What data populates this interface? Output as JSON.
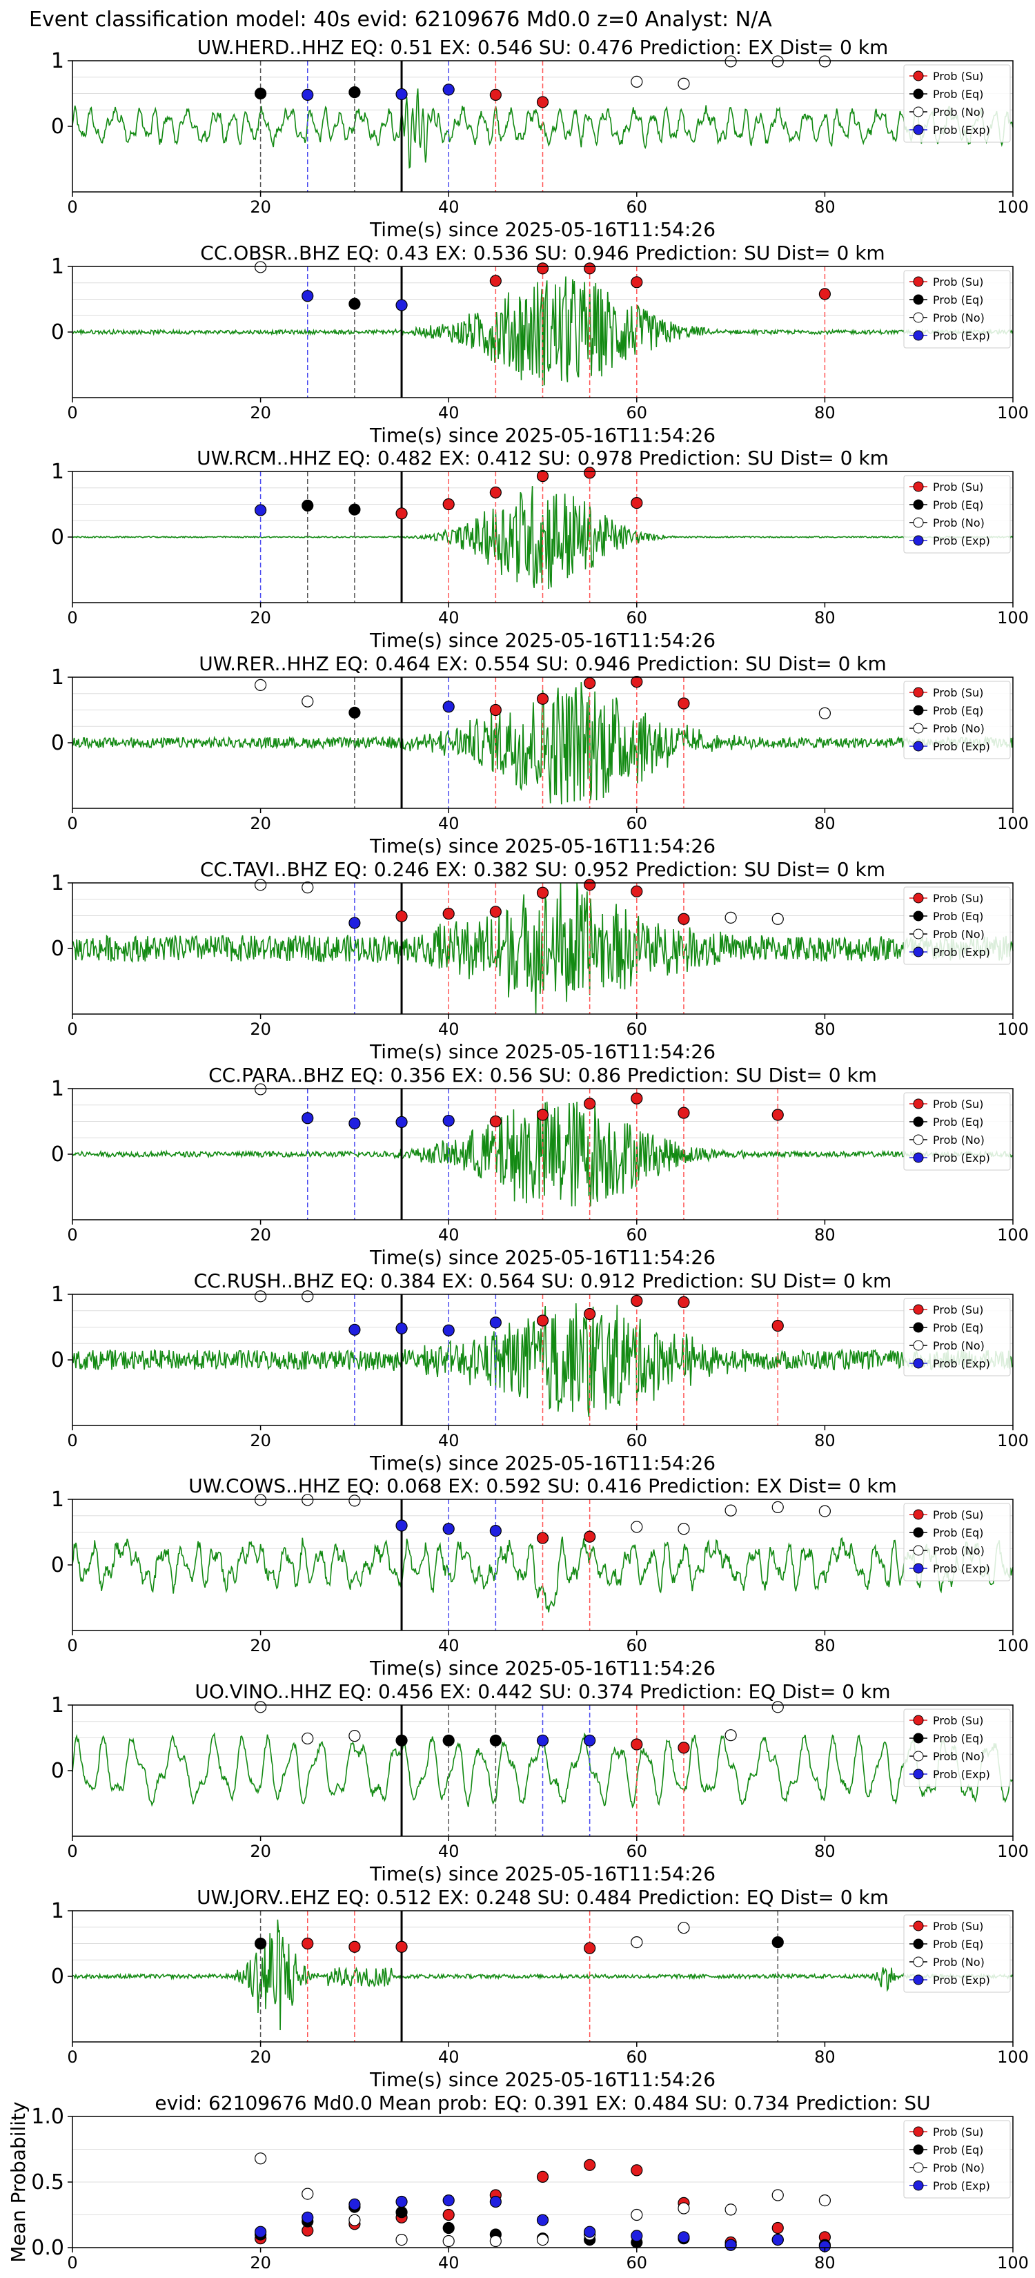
{
  "page_title": "Event classification model: 40s evid: 62109676 Md0.0 z=0 Analyst: N/A",
  "legend_labels": [
    "Prob (Su)",
    "Prob (Eq)",
    "Prob (No)",
    "Prob (Exp)"
  ],
  "colors": {
    "su": "#e31a1c",
    "eq": "#000000",
    "no": "#ffffff",
    "exp": "#1f1fe0",
    "waveform": "#138a13",
    "axis": "#000000",
    "grid": "#dddddd"
  },
  "chart_data": [
    {
      "type": "line",
      "station": "UW.HERD..HHZ",
      "title": "UW.HERD..HHZ   EQ: 0.51  EX: 0.546  SU: 0.476   Prediction: EX    Dist= 0 km",
      "xlabel": "Time(s) since 2025-05-16T11:54:26",
      "xlim": [
        0,
        100
      ],
      "ylim": [
        -1,
        1
      ],
      "xticks": [
        "0",
        "20",
        "40",
        "60",
        "80",
        "100"
      ],
      "yticks": [
        "0",
        "1"
      ],
      "waveform": {
        "kind": "herd",
        "amplitude": 0.55
      },
      "origin_time": 35,
      "series": [
        {
          "name": "Prob (Su)",
          "x": [
            45,
            50
          ],
          "y": [
            0.48,
            0.37
          ]
        },
        {
          "name": "Prob (Eq)",
          "x": [
            20,
            30
          ],
          "y": [
            0.5,
            0.52
          ]
        },
        {
          "name": "Prob (No)",
          "x": [
            60,
            65,
            70,
            75,
            80
          ],
          "y": [
            0.68,
            0.65,
            0.99,
            0.99,
            0.99
          ]
        },
        {
          "name": "Prob (Exp)",
          "x": [
            25,
            35,
            40
          ],
          "y": [
            0.48,
            0.49,
            0.56
          ]
        }
      ]
    },
    {
      "type": "line",
      "station": "CC.OBSR..BHZ",
      "title": "CC.OBSR..BHZ   EQ: 0.43  EX: 0.536  SU: 0.946   Prediction: SU    Dist= 0 km",
      "xlabel": "Time(s) since 2025-05-16T11:54:26",
      "xlim": [
        0,
        100
      ],
      "ylim": [
        -1,
        1
      ],
      "xticks": [
        "0",
        "20",
        "40",
        "60",
        "80",
        "100"
      ],
      "yticks": [
        "0",
        "1"
      ],
      "waveform": {
        "kind": "burst",
        "center": 52,
        "width": 9,
        "amplitude": 0.9,
        "noise": 0.03
      },
      "origin_time": 35,
      "series": [
        {
          "name": "Prob (Su)",
          "x": [
            45,
            50,
            55,
            60,
            80
          ],
          "y": [
            0.78,
            0.97,
            0.97,
            0.76,
            0.58
          ]
        },
        {
          "name": "Prob (Eq)",
          "x": [
            30
          ],
          "y": [
            0.43
          ]
        },
        {
          "name": "Prob (No)",
          "x": [
            20
          ],
          "y": [
            0.99
          ]
        },
        {
          "name": "Prob (Exp)",
          "x": [
            25,
            35
          ],
          "y": [
            0.55,
            0.41
          ]
        }
      ]
    },
    {
      "type": "line",
      "station": "UW.RCM..HHZ",
      "title": "UW.RCM..HHZ   EQ: 0.482  EX: 0.412  SU: 0.978   Prediction: SU    Dist= 0 km",
      "xlabel": "Time(s) since 2025-05-16T11:54:26",
      "xlim": [
        0,
        100
      ],
      "ylim": [
        -1,
        1
      ],
      "xticks": [
        "0",
        "20",
        "40",
        "60",
        "80",
        "100"
      ],
      "yticks": [
        "0",
        "1"
      ],
      "waveform": {
        "kind": "burst",
        "center": 50,
        "width": 7,
        "amplitude": 0.85,
        "noise": 0.01
      },
      "origin_time": 35,
      "series": [
        {
          "name": "Prob (Su)",
          "x": [
            35,
            40,
            45,
            50,
            55,
            60
          ],
          "y": [
            0.36,
            0.5,
            0.68,
            0.93,
            0.98,
            0.52
          ]
        },
        {
          "name": "Prob (Eq)",
          "x": [
            25,
            30
          ],
          "y": [
            0.48,
            0.42
          ]
        },
        {
          "name": "Prob (No)",
          "x": [],
          "y": []
        },
        {
          "name": "Prob (Exp)",
          "x": [
            20
          ],
          "y": [
            0.41
          ]
        }
      ]
    },
    {
      "type": "line",
      "station": "UW.RER..HHZ",
      "title": "UW.RER..HHZ   EQ: 0.464  EX: 0.554  SU: 0.946   Prediction: SU    Dist= 0 km",
      "xlabel": "Time(s) since 2025-05-16T11:54:26",
      "xlim": [
        0,
        100
      ],
      "ylim": [
        -1,
        1
      ],
      "xticks": [
        "0",
        "20",
        "40",
        "60",
        "80",
        "100"
      ],
      "yticks": [
        "0",
        "1"
      ],
      "waveform": {
        "kind": "burst",
        "center": 53,
        "width": 10,
        "amplitude": 0.95,
        "noise": 0.08
      },
      "origin_time": 35,
      "series": [
        {
          "name": "Prob (Su)",
          "x": [
            45,
            50,
            55,
            60,
            65
          ],
          "y": [
            0.5,
            0.67,
            0.91,
            0.93,
            0.6
          ]
        },
        {
          "name": "Prob (Eq)",
          "x": [
            30
          ],
          "y": [
            0.46
          ]
        },
        {
          "name": "Prob (No)",
          "x": [
            20,
            25,
            80
          ],
          "y": [
            0.88,
            0.63,
            0.45
          ]
        },
        {
          "name": "Prob (Exp)",
          "x": [
            40
          ],
          "y": [
            0.55
          ]
        }
      ]
    },
    {
      "type": "line",
      "station": "CC.TAVI..BHZ",
      "title": "CC.TAVI..BHZ   EQ: 0.246  EX: 0.382  SU: 0.952   Prediction: SU    Dist= 0 km",
      "xlabel": "Time(s) since 2025-05-16T11:54:26",
      "xlim": [
        0,
        100
      ],
      "ylim": [
        -1,
        1
      ],
      "xticks": [
        "0",
        "20",
        "40",
        "60",
        "80",
        "100"
      ],
      "yticks": [
        "0",
        "1"
      ],
      "waveform": {
        "kind": "burst",
        "center": 52,
        "width": 11,
        "amplitude": 0.9,
        "noise": 0.2
      },
      "origin_time": 35,
      "series": [
        {
          "name": "Prob (Su)",
          "x": [
            35,
            40,
            45,
            50,
            55,
            60,
            65
          ],
          "y": [
            0.49,
            0.53,
            0.56,
            0.85,
            0.97,
            0.87,
            0.45
          ]
        },
        {
          "name": "Prob (Eq)",
          "x": [],
          "y": []
        },
        {
          "name": "Prob (No)",
          "x": [
            20,
            25,
            70,
            75
          ],
          "y": [
            0.97,
            0.93,
            0.47,
            0.45
          ]
        },
        {
          "name": "Prob (Exp)",
          "x": [
            30
          ],
          "y": [
            0.39
          ]
        }
      ]
    },
    {
      "type": "line",
      "station": "CC.PARA..BHZ",
      "title": "CC.PARA..BHZ   EQ: 0.356  EX: 0.56  SU: 0.86   Prediction: SU    Dist= 0 km",
      "xlabel": "Time(s) since 2025-05-16T11:54:26",
      "xlim": [
        0,
        100
      ],
      "ylim": [
        -1,
        1
      ],
      "xticks": [
        "0",
        "20",
        "40",
        "60",
        "80",
        "100"
      ],
      "yticks": [
        "0",
        "1"
      ],
      "waveform": {
        "kind": "burst",
        "center": 52,
        "width": 10,
        "amplitude": 0.9,
        "noise": 0.04
      },
      "origin_time": 35,
      "series": [
        {
          "name": "Prob (Su)",
          "x": [
            45,
            50,
            55,
            60,
            65,
            75
          ],
          "y": [
            0.5,
            0.6,
            0.77,
            0.85,
            0.63,
            0.6
          ]
        },
        {
          "name": "Prob (Eq)",
          "x": [],
          "y": []
        },
        {
          "name": "Prob (No)",
          "x": [
            20
          ],
          "y": [
            0.99
          ]
        },
        {
          "name": "Prob (Exp)",
          "x": [
            25,
            30,
            35,
            40
          ],
          "y": [
            0.55,
            0.47,
            0.49,
            0.51
          ]
        }
      ]
    },
    {
      "type": "line",
      "station": "CC.RUSH..BHZ",
      "title": "CC.RUSH..BHZ   EQ: 0.384  EX: 0.564  SU: 0.912   Prediction: SU    Dist= 0 km",
      "xlabel": "Time(s) since 2025-05-16T11:54:26",
      "xlim": [
        0,
        100
      ],
      "ylim": [
        -1,
        1
      ],
      "xticks": [
        "0",
        "20",
        "40",
        "60",
        "80",
        "100"
      ],
      "yticks": [
        "0",
        "1"
      ],
      "waveform": {
        "kind": "burst",
        "center": 54,
        "width": 11,
        "amplitude": 0.85,
        "noise": 0.15
      },
      "origin_time": 35,
      "series": [
        {
          "name": "Prob (Su)",
          "x": [
            50,
            55,
            60,
            65,
            75
          ],
          "y": [
            0.6,
            0.7,
            0.9,
            0.88,
            0.52
          ]
        },
        {
          "name": "Prob (Eq)",
          "x": [],
          "y": []
        },
        {
          "name": "Prob (No)",
          "x": [
            20,
            25
          ],
          "y": [
            0.97,
            0.97
          ]
        },
        {
          "name": "Prob (Exp)",
          "x": [
            30,
            35,
            40,
            45
          ],
          "y": [
            0.46,
            0.48,
            0.45,
            0.57
          ]
        }
      ]
    },
    {
      "type": "line",
      "station": "UW.COWS..HHZ",
      "title": "UW.COWS..HHZ   EQ: 0.068  EX: 0.592  SU: 0.416   Prediction: EX    Dist= 0 km",
      "xlabel": "Time(s) since 2025-05-16T11:54:26",
      "xlim": [
        0,
        100
      ],
      "ylim": [
        -1,
        1
      ],
      "xticks": [
        "0",
        "20",
        "40",
        "60",
        "80",
        "100"
      ],
      "yticks": [
        "0",
        "1"
      ],
      "waveform": {
        "kind": "cows",
        "amplitude": 0.6
      },
      "origin_time": 35,
      "series": [
        {
          "name": "Prob (Su)",
          "x": [
            50,
            55
          ],
          "y": [
            0.41,
            0.43
          ]
        },
        {
          "name": "Prob (Eq)",
          "x": [],
          "y": []
        },
        {
          "name": "Prob (No)",
          "x": [
            20,
            25,
            30,
            60,
            65,
            70,
            75,
            80
          ],
          "y": [
            0.99,
            0.99,
            0.98,
            0.58,
            0.55,
            0.83,
            0.88,
            0.82
          ]
        },
        {
          "name": "Prob (Exp)",
          "x": [
            35,
            40,
            45
          ],
          "y": [
            0.6,
            0.55,
            0.52
          ]
        }
      ]
    },
    {
      "type": "line",
      "station": "UO.VINO..HHZ",
      "title": "UO.VINO..HHZ   EQ: 0.456  EX: 0.442  SU: 0.374   Prediction: EQ    Dist= 0 km",
      "xlabel": "Time(s) since 2025-05-16T11:54:26",
      "xlim": [
        0,
        100
      ],
      "ylim": [
        -1,
        1
      ],
      "xticks": [
        "0",
        "20",
        "40",
        "60",
        "80",
        "100"
      ],
      "yticks": [
        "0",
        "1"
      ],
      "waveform": {
        "kind": "vino",
        "amplitude": 0.7
      },
      "origin_time": 35,
      "series": [
        {
          "name": "Prob (Su)",
          "x": [
            60,
            65
          ],
          "y": [
            0.4,
            0.35
          ]
        },
        {
          "name": "Prob (Eq)",
          "x": [
            35,
            40,
            45
          ],
          "y": [
            0.46,
            0.46,
            0.46
          ]
        },
        {
          "name": "Prob (No)",
          "x": [
            20,
            25,
            30,
            70,
            75
          ],
          "y": [
            0.97,
            0.49,
            0.53,
            0.54,
            0.97
          ]
        },
        {
          "name": "Prob (Exp)",
          "x": [
            50,
            55
          ],
          "y": [
            0.46,
            0.46
          ]
        }
      ]
    },
    {
      "type": "line",
      "station": "UW.JORV..EHZ",
      "title": "UW.JORV..EHZ   EQ: 0.512  EX: 0.248  SU: 0.484   Prediction: EQ    Dist= 0 km",
      "xlabel": "Time(s) since 2025-05-16T11:54:26",
      "xlim": [
        0,
        100
      ],
      "ylim": [
        -1,
        1
      ],
      "xticks": [
        "0",
        "20",
        "40",
        "60",
        "80",
        "100"
      ],
      "yticks": [
        "0",
        "1"
      ],
      "waveform": {
        "kind": "jorv",
        "amplitude": 0.9
      },
      "origin_time": 35,
      "series": [
        {
          "name": "Prob (Su)",
          "x": [
            25,
            30,
            35,
            55
          ],
          "y": [
            0.5,
            0.45,
            0.45,
            0.43
          ]
        },
        {
          "name": "Prob (Eq)",
          "x": [
            20,
            75
          ],
          "y": [
            0.5,
            0.52
          ]
        },
        {
          "name": "Prob (No)",
          "x": [
            60,
            65
          ],
          "y": [
            0.52,
            0.74
          ]
        },
        {
          "name": "Prob (Exp)",
          "x": [],
          "y": []
        }
      ]
    },
    {
      "type": "scatter",
      "title": "evid: 62109676  Md0.0   Mean prob:   EQ: 0.391  EX: 0.484  SU: 0.734   Prediction: SU",
      "ylabel": "Mean Probability",
      "xlim": [
        0,
        100
      ],
      "ylim": [
        0,
        1
      ],
      "xticks": [
        "0",
        "20",
        "40",
        "60",
        "80",
        "100"
      ],
      "yticks": [
        "0.0",
        "0.5",
        "1.0"
      ],
      "series": [
        {
          "name": "Prob (Su)",
          "x": [
            20,
            25,
            30,
            35,
            40,
            45,
            50,
            55,
            60,
            65,
            70,
            75,
            80
          ],
          "y": [
            0.07,
            0.13,
            0.18,
            0.23,
            0.25,
            0.4,
            0.54,
            0.63,
            0.59,
            0.34,
            0.04,
            0.15,
            0.08
          ]
        },
        {
          "name": "Prob (Eq)",
          "x": [
            20,
            25,
            30,
            35,
            40,
            45,
            50,
            55,
            60,
            65,
            70,
            75,
            80
          ],
          "y": [
            0.1,
            0.2,
            0.31,
            0.27,
            0.15,
            0.1,
            0.07,
            0.06,
            0.04,
            0.07,
            0.02,
            0.06,
            0.02
          ]
        },
        {
          "name": "Prob (No)",
          "x": [
            20,
            25,
            30,
            35,
            40,
            45,
            50,
            55,
            60,
            65,
            70,
            75,
            80
          ],
          "y": [
            0.68,
            0.41,
            0.21,
            0.06,
            0.05,
            0.05,
            0.06,
            0.1,
            0.25,
            0.3,
            0.29,
            0.4,
            0.36
          ]
        },
        {
          "name": "Prob (Exp)",
          "x": [
            20,
            25,
            30,
            35,
            40,
            45,
            50,
            55,
            60,
            65,
            70,
            75,
            80
          ],
          "y": [
            0.12,
            0.23,
            0.33,
            0.35,
            0.36,
            0.35,
            0.21,
            0.12,
            0.09,
            0.08,
            0.02,
            0.06,
            0.01
          ]
        }
      ]
    }
  ]
}
